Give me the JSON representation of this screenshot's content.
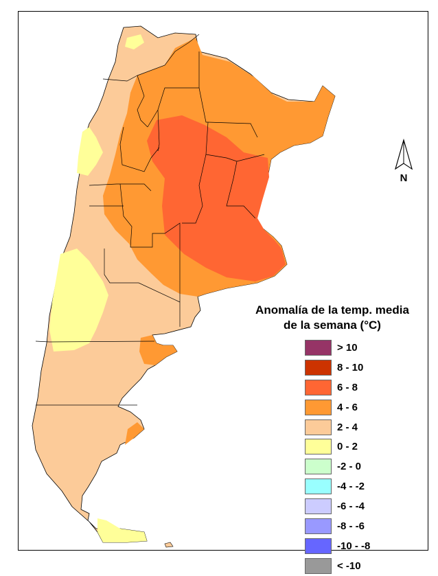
{
  "legend": {
    "title_line1": "Anomalía de la temp. media",
    "title_line2": "de la semana (°C)",
    "items": [
      {
        "label": "> 10",
        "color": "#963466"
      },
      {
        "label": "8 - 10",
        "color": "#cc3300"
      },
      {
        "label": "6 - 8",
        "color": "#ff6633"
      },
      {
        "label": "4 - 6",
        "color": "#ff9933"
      },
      {
        "label": "2 - 4",
        "color": "#fccb99"
      },
      {
        "label": "0 - 2",
        "color": "#ffff99"
      },
      {
        "label": "-2 - 0",
        "color": "#ccffcc"
      },
      {
        "label": "-4 - -2",
        "color": "#99ffff"
      },
      {
        "label": "-6 - -4",
        "color": "#ccccff"
      },
      {
        "label": "-8 - -6",
        "color": "#9999ff"
      },
      {
        "label": "-10 - -8",
        "color": "#6666ff"
      },
      {
        "label": "< -10",
        "color": "#999999"
      }
    ]
  },
  "north_arrow": {
    "letter": "N",
    "icon": "north-arrow-icon"
  }
}
